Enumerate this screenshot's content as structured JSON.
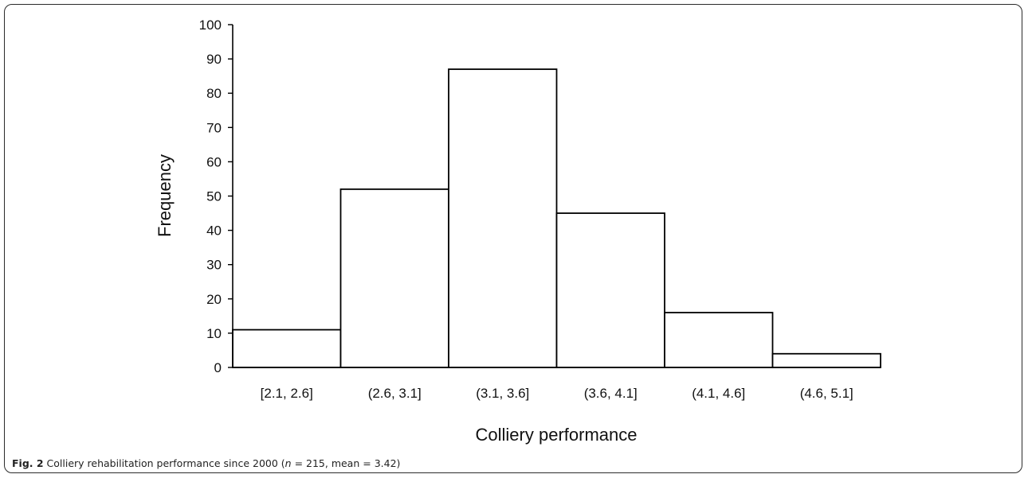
{
  "chart_data": {
    "type": "bar",
    "categories": [
      "[2.1, 2.6]",
      "(2.6, 3.1]",
      "(3.1, 3.6]",
      "(3.6, 4.1]",
      "(4.1, 4.6]",
      "(4.6, 5.1]"
    ],
    "values": [
      11,
      52,
      87,
      45,
      16,
      4
    ],
    "xlabel": "Colliery performance",
    "ylabel": "Frequency",
    "ylim": [
      0,
      100
    ],
    "yticks": [
      0,
      10,
      20,
      30,
      40,
      50,
      60,
      70,
      80,
      90,
      100
    ],
    "grid": false,
    "legend": "none"
  },
  "caption": {
    "label": "Fig. 2",
    "text_before": " Colliery rehabilitation performance since 2000 (",
    "n_symbol": "n",
    "text_after": " = 215, mean = 3.42)"
  }
}
